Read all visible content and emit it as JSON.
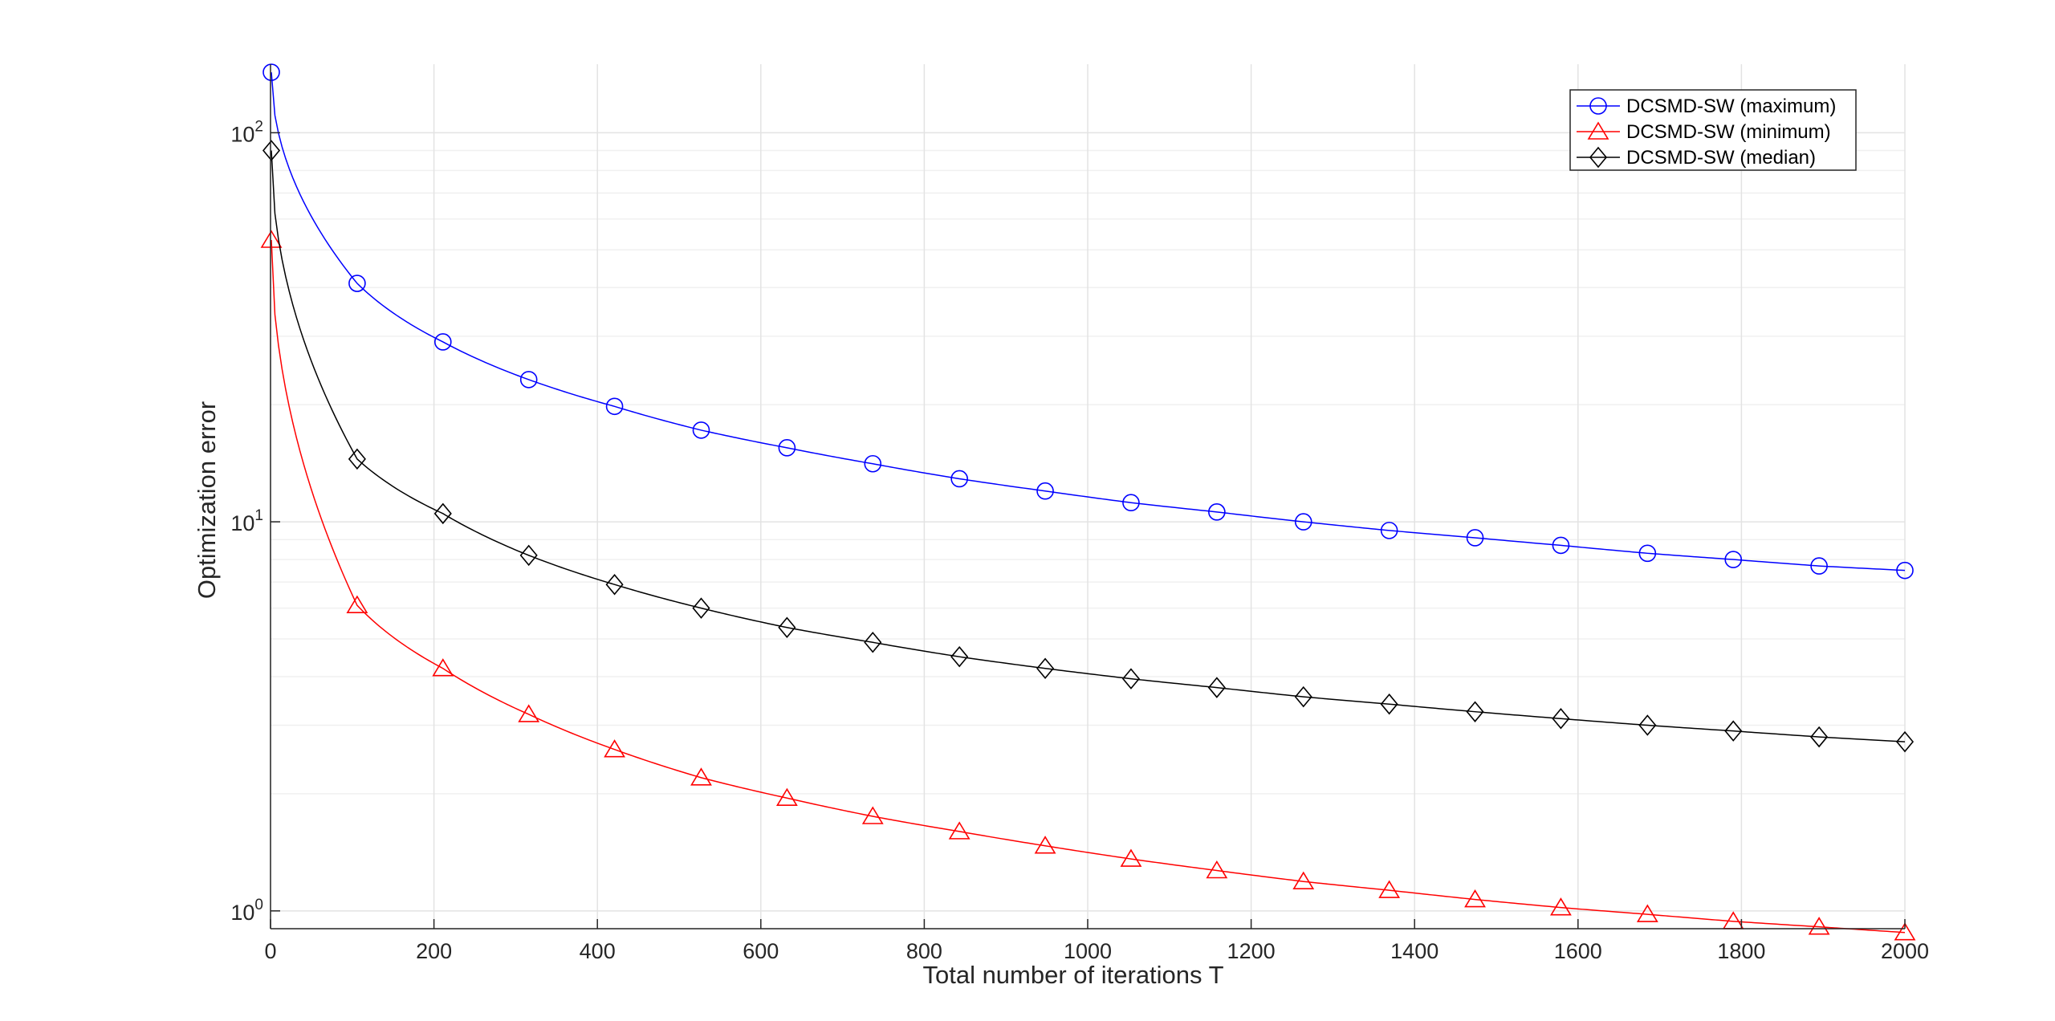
{
  "chart_data": {
    "type": "line",
    "title": "",
    "xlabel": "Total number of iterations T",
    "ylabel": "Optimization error",
    "xscale": "linear",
    "yscale": "log",
    "xlim": [
      0,
      2000
    ],
    "ylim": [
      0.9,
      150
    ],
    "grid": true,
    "legend_position": "top-right",
    "x_ticks": [
      0,
      200,
      400,
      600,
      800,
      1000,
      1200,
      1400,
      1600,
      1800,
      2000
    ],
    "y_ticks": [
      {
        "value": 1,
        "base": "10",
        "exp": "0"
      },
      {
        "value": 10,
        "base": "10",
        "exp": "1"
      },
      {
        "value": 100,
        "base": "10",
        "exp": "2"
      }
    ],
    "series": [
      {
        "name": "DCSMD-SW (maximum)",
        "color": "#0000ff",
        "marker": "circle",
        "markers": [
          {
            "x": 1,
            "y": 143
          },
          {
            "x": 106,
            "y": 41
          },
          {
            "x": 211,
            "y": 29
          },
          {
            "x": 316,
            "y": 23.2
          },
          {
            "x": 421,
            "y": 19.8
          },
          {
            "x": 527,
            "y": 17.2
          },
          {
            "x": 632,
            "y": 15.5
          },
          {
            "x": 737,
            "y": 14.1
          },
          {
            "x": 843,
            "y": 12.9
          },
          {
            "x": 948,
            "y": 12
          },
          {
            "x": 1053,
            "y": 11.2
          },
          {
            "x": 1158,
            "y": 10.6
          },
          {
            "x": 1264,
            "y": 10
          },
          {
            "x": 1369,
            "y": 9.5
          },
          {
            "x": 1474,
            "y": 9.1
          },
          {
            "x": 1579,
            "y": 8.7
          },
          {
            "x": 1685,
            "y": 8.3
          },
          {
            "x": 1790,
            "y": 8
          },
          {
            "x": 1895,
            "y": 7.7
          },
          {
            "x": 2000,
            "y": 7.5
          }
        ]
      },
      {
        "name": "DCSMD-SW (minimum)",
        "color": "#ff0000",
        "marker": "triangle",
        "markers": [
          {
            "x": 1,
            "y": 53
          },
          {
            "x": 106,
            "y": 6.1
          },
          {
            "x": 211,
            "y": 4.2
          },
          {
            "x": 316,
            "y": 3.2
          },
          {
            "x": 421,
            "y": 2.6
          },
          {
            "x": 527,
            "y": 2.2
          },
          {
            "x": 632,
            "y": 1.95
          },
          {
            "x": 737,
            "y": 1.75
          },
          {
            "x": 843,
            "y": 1.6
          },
          {
            "x": 948,
            "y": 1.47
          },
          {
            "x": 1053,
            "y": 1.36
          },
          {
            "x": 1158,
            "y": 1.27
          },
          {
            "x": 1264,
            "y": 1.19
          },
          {
            "x": 1369,
            "y": 1.13
          },
          {
            "x": 1474,
            "y": 1.07
          },
          {
            "x": 1579,
            "y": 1.02
          },
          {
            "x": 1685,
            "y": 0.98
          },
          {
            "x": 1790,
            "y": 0.94
          },
          {
            "x": 1895,
            "y": 0.91
          },
          {
            "x": 2000,
            "y": 0.88
          }
        ]
      },
      {
        "name": "DCSMD-SW (median)",
        "color": "#000000",
        "marker": "diamond",
        "markers": [
          {
            "x": 1,
            "y": 90
          },
          {
            "x": 106,
            "y": 14.5
          },
          {
            "x": 211,
            "y": 10.5
          },
          {
            "x": 316,
            "y": 8.2
          },
          {
            "x": 421,
            "y": 6.9
          },
          {
            "x": 527,
            "y": 6
          },
          {
            "x": 632,
            "y": 5.35
          },
          {
            "x": 737,
            "y": 4.9
          },
          {
            "x": 843,
            "y": 4.5
          },
          {
            "x": 948,
            "y": 4.2
          },
          {
            "x": 1053,
            "y": 3.95
          },
          {
            "x": 1158,
            "y": 3.75
          },
          {
            "x": 1264,
            "y": 3.55
          },
          {
            "x": 1369,
            "y": 3.4
          },
          {
            "x": 1474,
            "y": 3.25
          },
          {
            "x": 1579,
            "y": 3.12
          },
          {
            "x": 1685,
            "y": 3
          },
          {
            "x": 1790,
            "y": 2.9
          },
          {
            "x": 1895,
            "y": 2.8
          },
          {
            "x": 2000,
            "y": 2.72
          }
        ]
      }
    ]
  }
}
